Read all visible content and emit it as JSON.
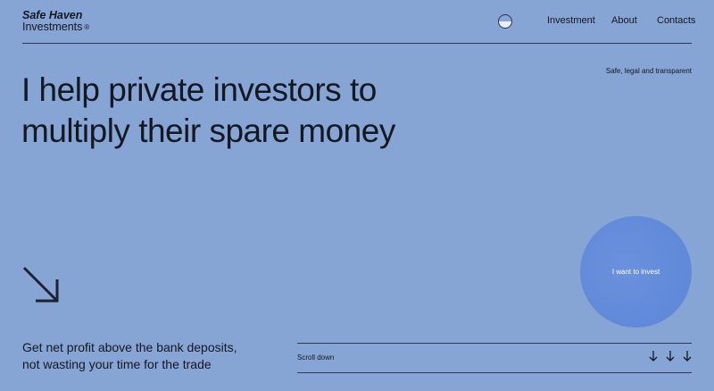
{
  "brand": {
    "line1": "Safe Haven",
    "line2": "Investments",
    "mark": "®"
  },
  "header": {
    "theme_toggle_icon": "half-circle-toggle-icon",
    "nav": [
      "Investment",
      "About",
      "Contacts"
    ]
  },
  "tagline": "Safe, legal and transparent",
  "hero": {
    "line1": "I help private investors to",
    "line2": "multiply their spare money"
  },
  "decor": {
    "arrow_icon": "arrow-down-right-icon"
  },
  "subtext": {
    "line1": "Get net profit above the bank deposits,",
    "line2": "not wasting your time for the trade"
  },
  "cta": {
    "label": "I want to invest",
    "color": "#5b86d8"
  },
  "scroll": {
    "label": "Scroll down",
    "icons": [
      "arrow-down-icon",
      "arrow-down-icon",
      "arrow-down-icon"
    ]
  },
  "colors": {
    "background": "#86a4d4",
    "text": "#141821"
  }
}
